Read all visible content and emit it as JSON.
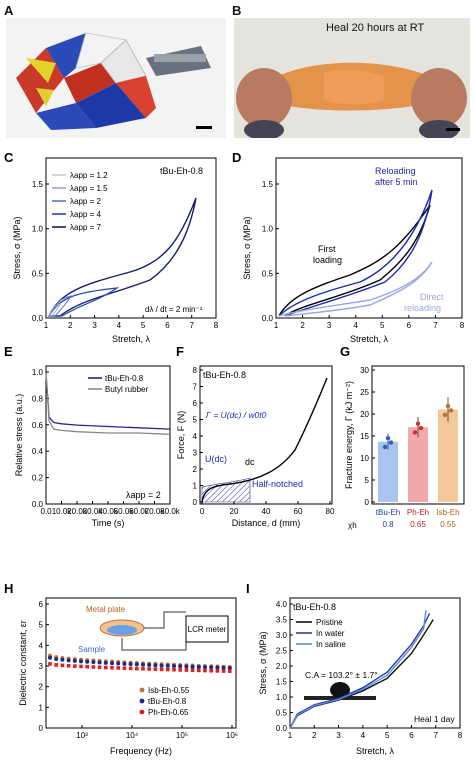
{
  "panels": {
    "A": {
      "letter": "A"
    },
    "B": {
      "letter": "B",
      "caption": "Heal 20 hours at RT"
    },
    "C": {
      "letter": "C",
      "sample": "tBu-Eh-0.8",
      "ylabel": "Stress, σ (MPa)",
      "xlabel": "Stretch, λ",
      "rate": "dλ / dt = 2 min⁻¹",
      "xticks": [
        "1",
        "2",
        "3",
        "4",
        "5",
        "6",
        "7",
        "8"
      ],
      "yticks": [
        "0.0",
        "0.5",
        "1.0",
        "1.5"
      ],
      "legend": [
        {
          "label": "λapp = 1.2",
          "color": "#c9c9c9"
        },
        {
          "label": "λapp = 1.5",
          "color": "#9aa9e0"
        },
        {
          "label": "λapp = 2",
          "color": "#5a74d0"
        },
        {
          "label": "λapp = 4",
          "color": "#2a44b0"
        },
        {
          "label": "λapp = 7",
          "color": "#141e6e"
        }
      ]
    },
    "D": {
      "letter": "D",
      "ylabel": "Stress, σ (MPa)",
      "xlabel": "Stretch, λ",
      "xticks": [
        "1",
        "2",
        "3",
        "4",
        "5",
        "6",
        "7",
        "8"
      ],
      "yticks": [
        "0.0",
        "0.5",
        "1.0",
        "1.5"
      ],
      "label_reload": "Reloading",
      "label_reload2": "after 5 min",
      "label_first": "First",
      "label_first2": "loading",
      "label_direct": "Direct",
      "label_direct2": "reloading"
    },
    "E": {
      "letter": "E",
      "ylabel": "Relative stress (a.u.)",
      "xlabel": "Time (s)",
      "xticks": [
        "0.0",
        "10.0k",
        "20.0k",
        "30.0k",
        "40.0k",
        "50.0k",
        "60.0k",
        "70.0k",
        "80.0k"
      ],
      "yticks": [
        "0.0",
        "0.2",
        "0.4",
        "0.6",
        "0.8",
        "1.0"
      ],
      "legend": [
        {
          "label": "tBu-Eh-0.8",
          "color": "#1a2a9a"
        },
        {
          "label": "Butyl rubber",
          "color": "#888888"
        }
      ],
      "note": "λapp = 2"
    },
    "F": {
      "letter": "F",
      "sample": "tBu-Eh-0.8",
      "ylabel": "Force, F (N)",
      "xlabel": "Distance, d (mm)",
      "xticks": [
        "0",
        "20",
        "40",
        "60",
        "80"
      ],
      "yticks": [
        "0",
        "1",
        "2",
        "3",
        "4",
        "5",
        "6",
        "7",
        "8"
      ],
      "eq": "Γ = U(dc) / w0t0",
      "u": "U(dc)",
      "dc": "dc",
      "notch": "Half-notched"
    },
    "G": {
      "letter": "G",
      "ylabel": "Fracture energy, Γ (kJ m⁻²)",
      "yticks": [
        "0",
        "5",
        "10",
        "15",
        "20",
        "25",
        "30"
      ],
      "chi": "χh",
      "bars": [
        {
          "name": "tBu-Eh",
          "chi": "0.8",
          "value": 13.7,
          "err": 1.8,
          "color": "#a9c4ef",
          "text": "#1a3aa0",
          "dot": "#2a5bd0"
        },
        {
          "name": "Ph-Eh",
          "chi": "0.65",
          "value": 17.0,
          "err": 2.3,
          "color": "#f0a8a8",
          "text": "#c02020",
          "dot": "#d03030"
        },
        {
          "name": "Isb-Eh",
          "chi": "0.55",
          "value": 21.0,
          "err": 2.8,
          "color": "#f2c89a",
          "text": "#b06010",
          "dot": "#c07020"
        }
      ]
    },
    "H": {
      "letter": "H",
      "ylabel": "Dielectric constant, εr",
      "xlabel": "Frequency (Hz)",
      "yticks": [
        "0",
        "1",
        "2",
        "3",
        "4",
        "5",
        "6"
      ],
      "xticks": [
        "10³",
        "10⁴",
        "10⁵",
        "10⁶"
      ],
      "metal": "Metal plate",
      "sample": "Sample",
      "lcr": "LCR meter",
      "legend": [
        {
          "label": "Isb-Eh-0.55",
          "color": "#c0703a"
        },
        {
          "label": "tBu-Eh-0.8",
          "color": "#1a2a8a"
        },
        {
          "label": "Ph-Eh-0.65",
          "color": "#e02020"
        }
      ]
    },
    "I": {
      "letter": "I",
      "sample": "tBu-Eh-0.8",
      "ylabel": "Stress, σ (MPa)",
      "xlabel": "Stretch, λ",
      "xticks": [
        "1",
        "2",
        "3",
        "4",
        "5",
        "6",
        "7",
        "8"
      ],
      "yticks": [
        "0.0",
        "0.5",
        "1.0",
        "1.5",
        "2.0",
        "2.5",
        "3.0",
        "3.5",
        "4.0"
      ],
      "ca": "C.A = 103.2° ± 1.7°",
      "heal": "Heal 1 day",
      "legend": [
        {
          "label": "Pristine",
          "color": "#111111"
        },
        {
          "label": "In water",
          "color": "#2a3ab0"
        },
        {
          "label": "In saline",
          "color": "#5a8ae0"
        }
      ]
    }
  },
  "chart_data": [
    {
      "panel": "E",
      "type": "line",
      "xlim": [
        0,
        80000
      ],
      "ylim": [
        0,
        1.05
      ],
      "series": [
        {
          "name": "tBu-Eh-0.8",
          "x": [
            0,
            2000,
            5000,
            10000,
            20000,
            40000,
            60000,
            80000
          ],
          "values": [
            1.0,
            0.66,
            0.62,
            0.61,
            0.6,
            0.59,
            0.58,
            0.57
          ]
        },
        {
          "name": "Butyl rubber",
          "x": [
            0,
            2000,
            5000,
            10000,
            20000,
            40000,
            60000,
            80000
          ],
          "values": [
            1.0,
            0.63,
            0.57,
            0.56,
            0.55,
            0.54,
            0.54,
            0.53
          ]
        }
      ]
    },
    {
      "panel": "G",
      "type": "bar",
      "categories": [
        "tBu-Eh",
        "Ph-Eh",
        "Isb-Eh"
      ],
      "values": [
        13.7,
        17.0,
        21.0
      ],
      "ylim": [
        0,
        30
      ]
    },
    {
      "panel": "I",
      "type": "line",
      "xlim": [
        1,
        8
      ],
      "ylim": [
        0,
        4
      ],
      "series": [
        {
          "name": "Pristine",
          "x": [
            1,
            1.3,
            2,
            3,
            4,
            5,
            6,
            6.5,
            6.9
          ],
          "values": [
            0,
            0.4,
            0.7,
            0.9,
            1.2,
            1.6,
            2.4,
            3.0,
            3.5
          ]
        },
        {
          "name": "In water",
          "x": [
            1,
            1.3,
            2,
            3,
            4,
            5,
            6,
            6.5,
            6.75
          ],
          "values": [
            0,
            0.45,
            0.75,
            0.95,
            1.3,
            1.8,
            2.7,
            3.3,
            3.7
          ]
        },
        {
          "name": "In saline",
          "x": [
            1,
            1.3,
            2,
            3,
            4,
            5,
            6,
            6.5,
            6.6
          ],
          "values": [
            0,
            0.42,
            0.72,
            0.92,
            1.25,
            1.7,
            2.6,
            3.2,
            3.8
          ]
        }
      ]
    }
  ]
}
